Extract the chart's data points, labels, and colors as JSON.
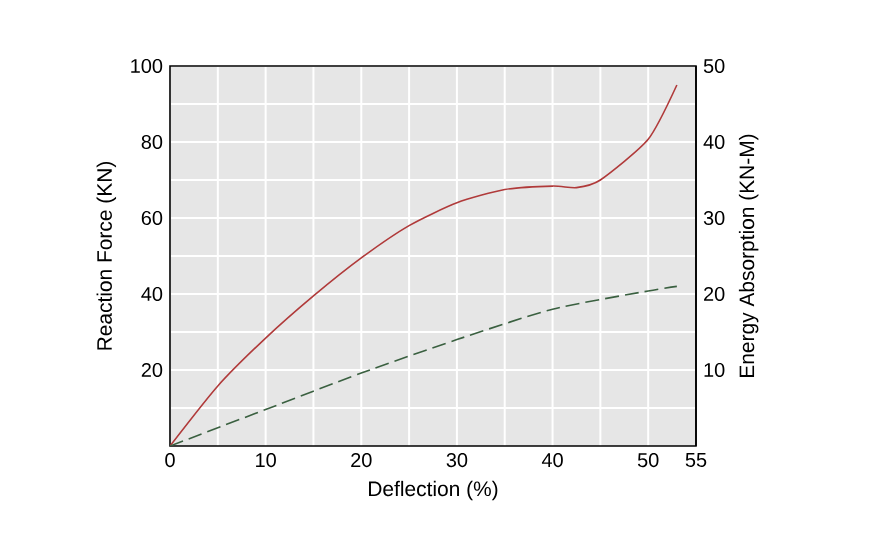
{
  "chart_data": {
    "type": "line",
    "xlabel": "Deflection (%)",
    "ylabel": "Reaction Force (KN)",
    "y2label": "Energy Absorption (KN-M)",
    "xlim": [
      0,
      55
    ],
    "ylim": [
      0,
      100
    ],
    "y2lim": [
      0,
      50
    ],
    "xticks": [
      0,
      {
        "value": 5,
        "label": null
      },
      10,
      {
        "value": 15,
        "label": null
      },
      20,
      {
        "value": 25,
        "label": null
      },
      30,
      {
        "value": 35,
        "label": null
      },
      40,
      {
        "value": 45,
        "label": null
      },
      50,
      55
    ],
    "yticks": [
      {
        "value": 10,
        "label": null
      },
      20,
      {
        "value": 30,
        "label": null
      },
      40,
      {
        "value": 50,
        "label": null
      },
      60,
      {
        "value": 70,
        "label": null
      },
      80,
      {
        "value": 90,
        "label": null
      },
      100
    ],
    "y2ticks": [
      10,
      20,
      30,
      40,
      50
    ],
    "grid": true,
    "marker": "none",
    "series": [
      {
        "color": "#b03a3a",
        "line_style": "solid",
        "x": [
          0,
          5,
          10,
          15,
          20,
          25,
          30,
          35,
          40,
          42.5,
          45,
          50,
          53
        ],
        "values": [
          0,
          15.8,
          28.4,
          39.5,
          49.5,
          58,
          64,
          67.5,
          68.4,
          68,
          70,
          80.7,
          95
        ]
      },
      {
        "color": "#3a6040",
        "line_style": "dashed",
        "axis": "y2",
        "x": [
          0,
          10,
          20,
          30,
          40,
          50,
          53
        ],
        "values": [
          0,
          4.8,
          9.6,
          14,
          18,
          20.4,
          21
        ]
      }
    ]
  }
}
